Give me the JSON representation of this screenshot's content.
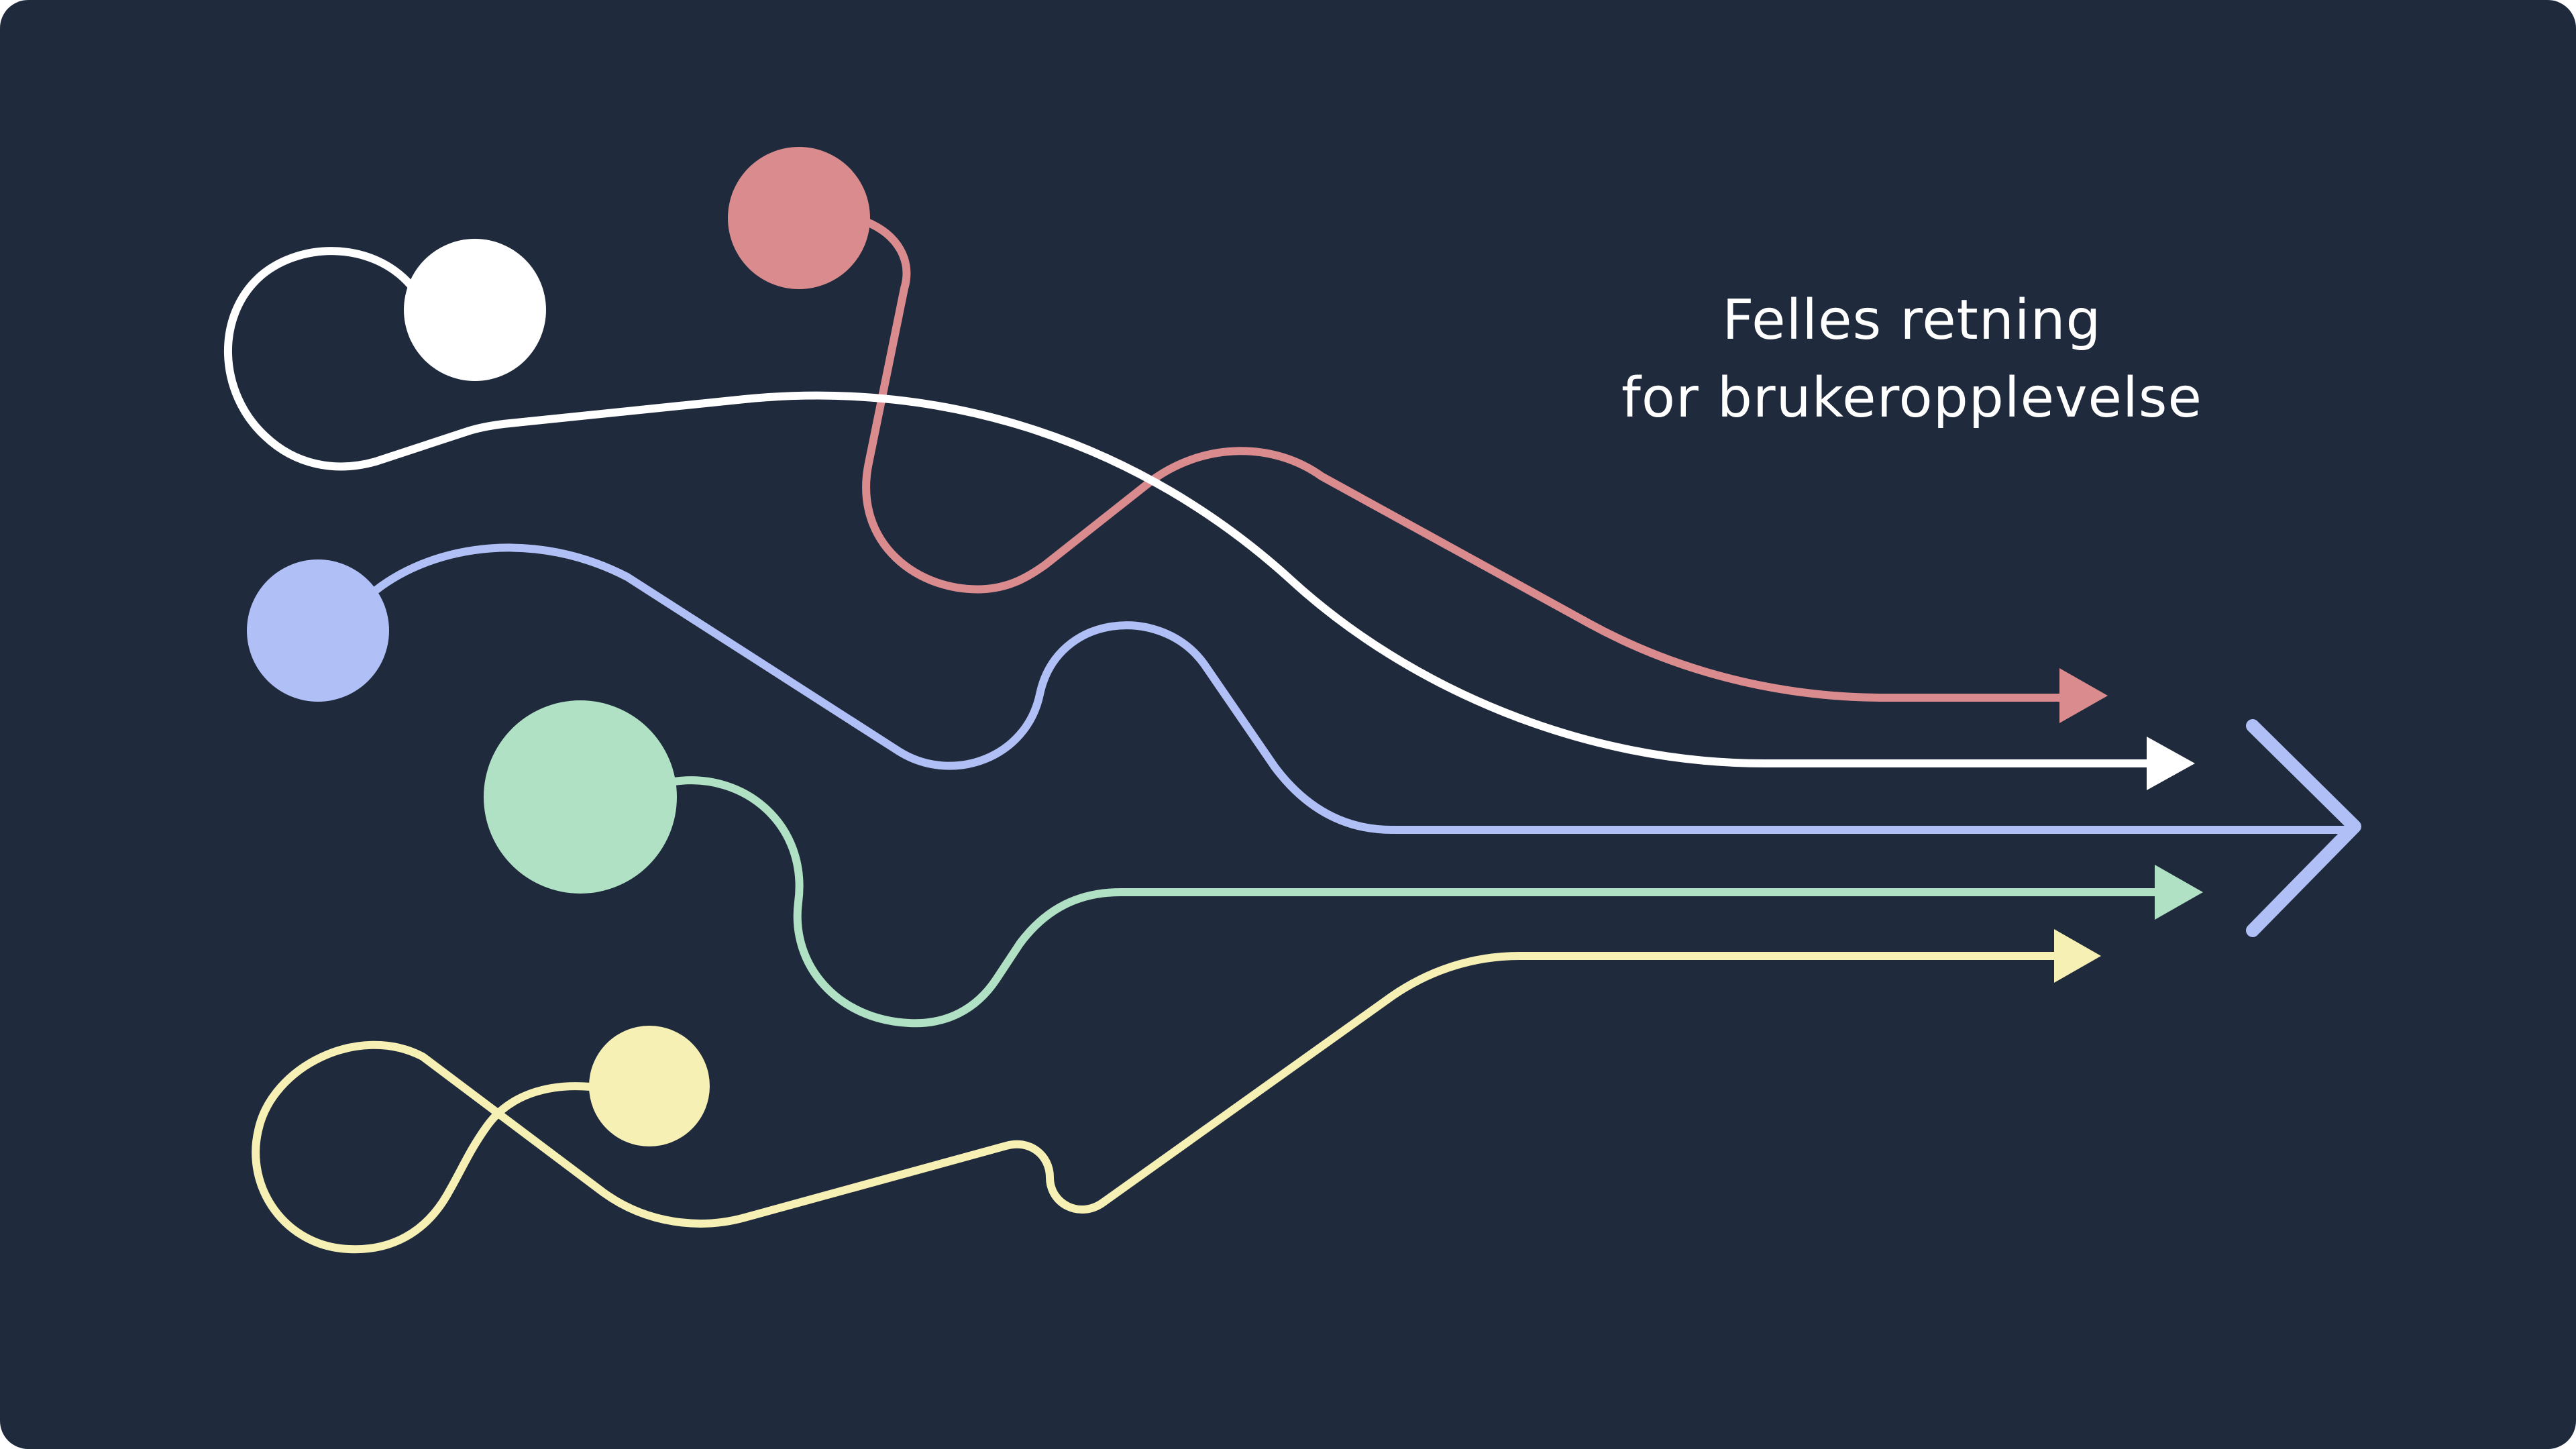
{
  "heading": {
    "line1": "Felles retning",
    "line2": "for brukeropplevelse"
  },
  "colors": {
    "background": "#1f2a3c",
    "text": "#ffffff",
    "white": "#ffffff",
    "red": "#d98b8e",
    "blue": "#b0bff5",
    "green": "#b0e1c4",
    "yellow": "#f7f0b5"
  },
  "icons": {
    "big_arrow": "chevron-right-icon",
    "line_end": "arrowhead-icon"
  }
}
